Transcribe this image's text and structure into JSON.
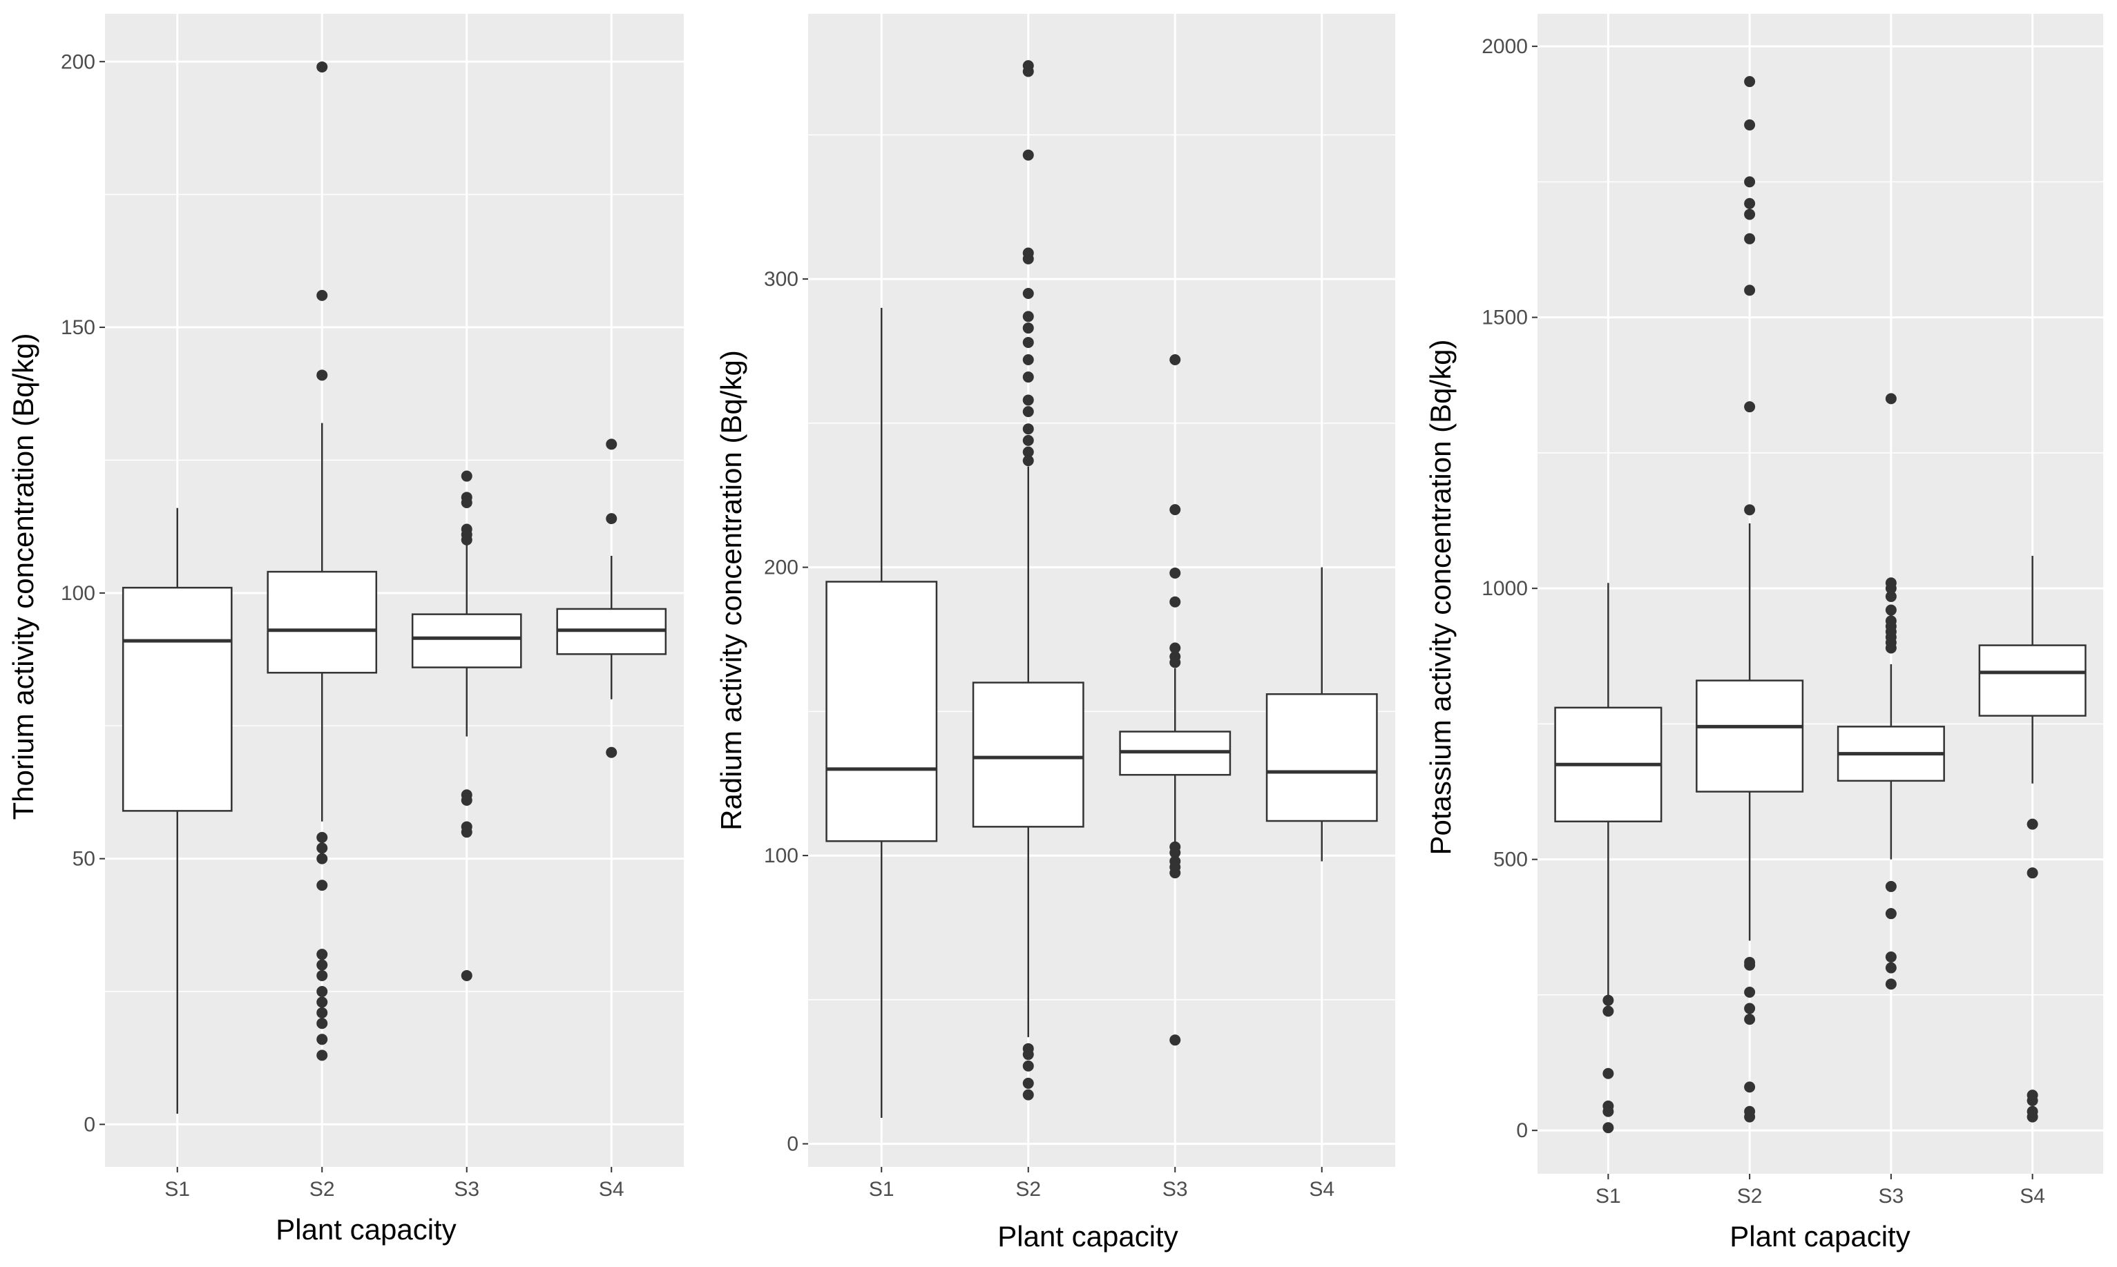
{
  "colors": {
    "panel_background": "#ebebeb",
    "grid_major": "#ffffff",
    "box_fill": "#ffffff",
    "box_line": "#333333",
    "outlier": "#333333",
    "tick_text": "#4d4d4d",
    "title_text": "#000000"
  },
  "chart_data": [
    {
      "type": "boxplot",
      "title": "",
      "xlabel": "Plant capacity",
      "ylabel": "Thorium activity concentration (Bq/kg)",
      "categories": [
        "S1",
        "S2",
        "S3",
        "S4"
      ],
      "ylim": [
        -8,
        209
      ],
      "yticks": [
        0,
        50,
        100,
        150,
        200
      ],
      "yticklabels": [
        "0",
        "50",
        "100",
        "150",
        "200"
      ],
      "grid": true,
      "boxes": [
        {
          "category": "S1",
          "whisker_low": 2,
          "q1": 59,
          "median": 91,
          "q3": 101,
          "whisker_high": 116,
          "outliers": []
        },
        {
          "category": "S2",
          "whisker_low": 57,
          "q1": 85,
          "median": 93,
          "q3": 104,
          "whisker_high": 132,
          "outliers": [
            199,
            156,
            141,
            54,
            52,
            50,
            45,
            32,
            30,
            28,
            25,
            23,
            21,
            19,
            16,
            13
          ]
        },
        {
          "category": "S3",
          "whisker_low": 73,
          "q1": 86,
          "median": 91.5,
          "q3": 96,
          "whisker_high": 110,
          "outliers": [
            122,
            118,
            117,
            112,
            111,
            110,
            62,
            61,
            56,
            55,
            28
          ]
        },
        {
          "category": "S4",
          "whisker_low": 80,
          "q1": 88.5,
          "median": 93,
          "q3": 97,
          "whisker_high": 107,
          "outliers": [
            128,
            114,
            70
          ]
        }
      ]
    },
    {
      "type": "boxplot",
      "title": "",
      "xlabel": "Plant capacity",
      "ylabel": "Radium activity concentration (Bq/kg)",
      "categories": [
        "S1",
        "S2",
        "S3",
        "S4"
      ],
      "ylim": [
        -8,
        392
      ],
      "yticks": [
        0,
        100,
        200,
        300
      ],
      "yticklabels": [
        "0",
        "100",
        "200",
        "300"
      ],
      "grid": true,
      "boxes": [
        {
          "category": "S1",
          "whisker_low": 9,
          "q1": 105,
          "median": 130,
          "q3": 195,
          "whisker_high": 290,
          "outliers": []
        },
        {
          "category": "S2",
          "whisker_low": 37,
          "q1": 110,
          "median": 134,
          "q3": 160,
          "whisker_high": 235,
          "outliers": [
            374,
            372,
            343,
            309,
            307,
            295,
            287,
            283,
            278,
            272,
            266,
            258,
            254,
            248,
            244,
            240,
            237,
            33,
            31,
            27,
            21,
            17
          ]
        },
        {
          "category": "S3",
          "whisker_low": 104,
          "q1": 128,
          "median": 136,
          "q3": 143,
          "whisker_high": 165,
          "outliers": [
            272,
            220,
            198,
            188,
            172,
            169,
            167,
            103,
            101,
            98,
            96,
            94,
            36
          ]
        },
        {
          "category": "S4",
          "whisker_low": 98,
          "q1": 112,
          "median": 129,
          "q3": 156,
          "whisker_high": 200,
          "outliers": []
        }
      ]
    },
    {
      "type": "boxplot",
      "title": "",
      "xlabel": "Plant capacity",
      "ylabel": "Potassium activity concentration (Bq/kg)",
      "categories": [
        "S1",
        "S2",
        "S3",
        "S4"
      ],
      "ylim": [
        -80,
        2060
      ],
      "yticks": [
        0,
        500,
        1000,
        1500,
        2000
      ],
      "yticklabels": [
        "0",
        "500",
        "1000",
        "1500",
        "2000"
      ],
      "grid": true,
      "boxes": [
        {
          "category": "S1",
          "whisker_low": 240,
          "q1": 570,
          "median": 675,
          "q3": 780,
          "whisker_high": 1010,
          "outliers": [
            240,
            220,
            105,
            45,
            35,
            5
          ]
        },
        {
          "category": "S2",
          "whisker_low": 350,
          "q1": 625,
          "median": 745,
          "q3": 830,
          "whisker_high": 1120,
          "outliers": [
            1935,
            1855,
            1750,
            1710,
            1690,
            1645,
            1550,
            1335,
            1145,
            310,
            305,
            255,
            225,
            205,
            80,
            35,
            25
          ]
        },
        {
          "category": "S3",
          "whisker_low": 500,
          "q1": 645,
          "median": 695,
          "q3": 745,
          "whisker_high": 860,
          "outliers": [
            1350,
            1010,
            1000,
            985,
            960,
            940,
            930,
            920,
            910,
            900,
            890,
            450,
            400,
            320,
            300,
            270
          ]
        },
        {
          "category": "S4",
          "whisker_low": 640,
          "q1": 765,
          "median": 845,
          "q3": 895,
          "whisker_high": 1060,
          "outliers": [
            565,
            475,
            65,
            55,
            35,
            25
          ]
        }
      ]
    }
  ]
}
